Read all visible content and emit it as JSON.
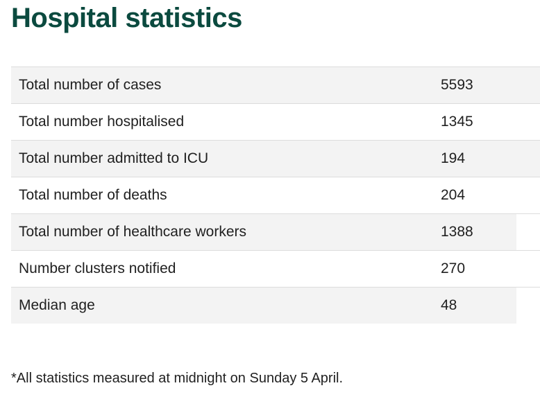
{
  "title": "Hospital statistics",
  "rows": [
    {
      "label": "Total number of cases",
      "value": "5593"
    },
    {
      "label": "Total number hospitalised",
      "value": "1345"
    },
    {
      "label": "Total number admitted to ICU",
      "value": "194"
    },
    {
      "label": "Total number of deaths",
      "value": "204"
    },
    {
      "label": "Total number of healthcare workers",
      "value": "1388"
    },
    {
      "label": "Number clusters notified",
      "value": "270"
    },
    {
      "label": "Median age",
      "value": "48"
    }
  ],
  "footnote": "*All statistics measured at midnight on Sunday 5 April.",
  "colors": {
    "title": "#0b4a3f",
    "row_shade": "#f3f3f3",
    "divider": "#dcdcdc"
  }
}
